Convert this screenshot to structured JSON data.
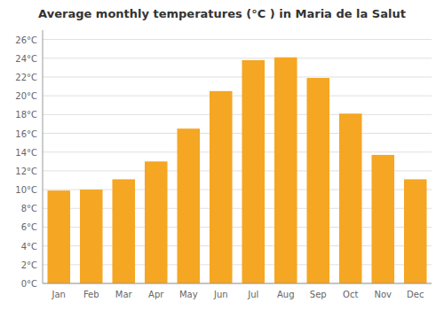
{
  "chart_data": {
    "type": "bar",
    "title": "Average monthly temperatures (°C ) in Maria de la Salut",
    "categories": [
      "Jan",
      "Feb",
      "Mar",
      "Apr",
      "May",
      "Jun",
      "Jul",
      "Aug",
      "Sep",
      "Oct",
      "Nov",
      "Dec"
    ],
    "values": [
      9.9,
      10.0,
      11.1,
      13.0,
      16.5,
      20.5,
      23.8,
      24.1,
      21.9,
      18.1,
      13.7,
      11.1
    ],
    "color": "#F5A623",
    "ylim": [
      0,
      27
    ],
    "yticks": [
      {
        "value": 0,
        "label": "0°C"
      },
      {
        "value": 2,
        "label": "2°C"
      },
      {
        "value": 4,
        "label": "4°C"
      },
      {
        "value": 6,
        "label": "6°C"
      },
      {
        "value": 8,
        "label": "8°C"
      },
      {
        "value": 10,
        "label": "10°C"
      },
      {
        "value": 12,
        "label": "12°C"
      },
      {
        "value": 14,
        "label": "14°C"
      },
      {
        "value": 16,
        "label": "16°C"
      },
      {
        "value": 18,
        "label": "18°C"
      },
      {
        "value": 20,
        "label": "20°C"
      },
      {
        "value": 22,
        "label": "22°C"
      },
      {
        "value": 24,
        "label": "24°C"
      },
      {
        "value": 26,
        "label": "26°C"
      }
    ],
    "grid": true
  }
}
